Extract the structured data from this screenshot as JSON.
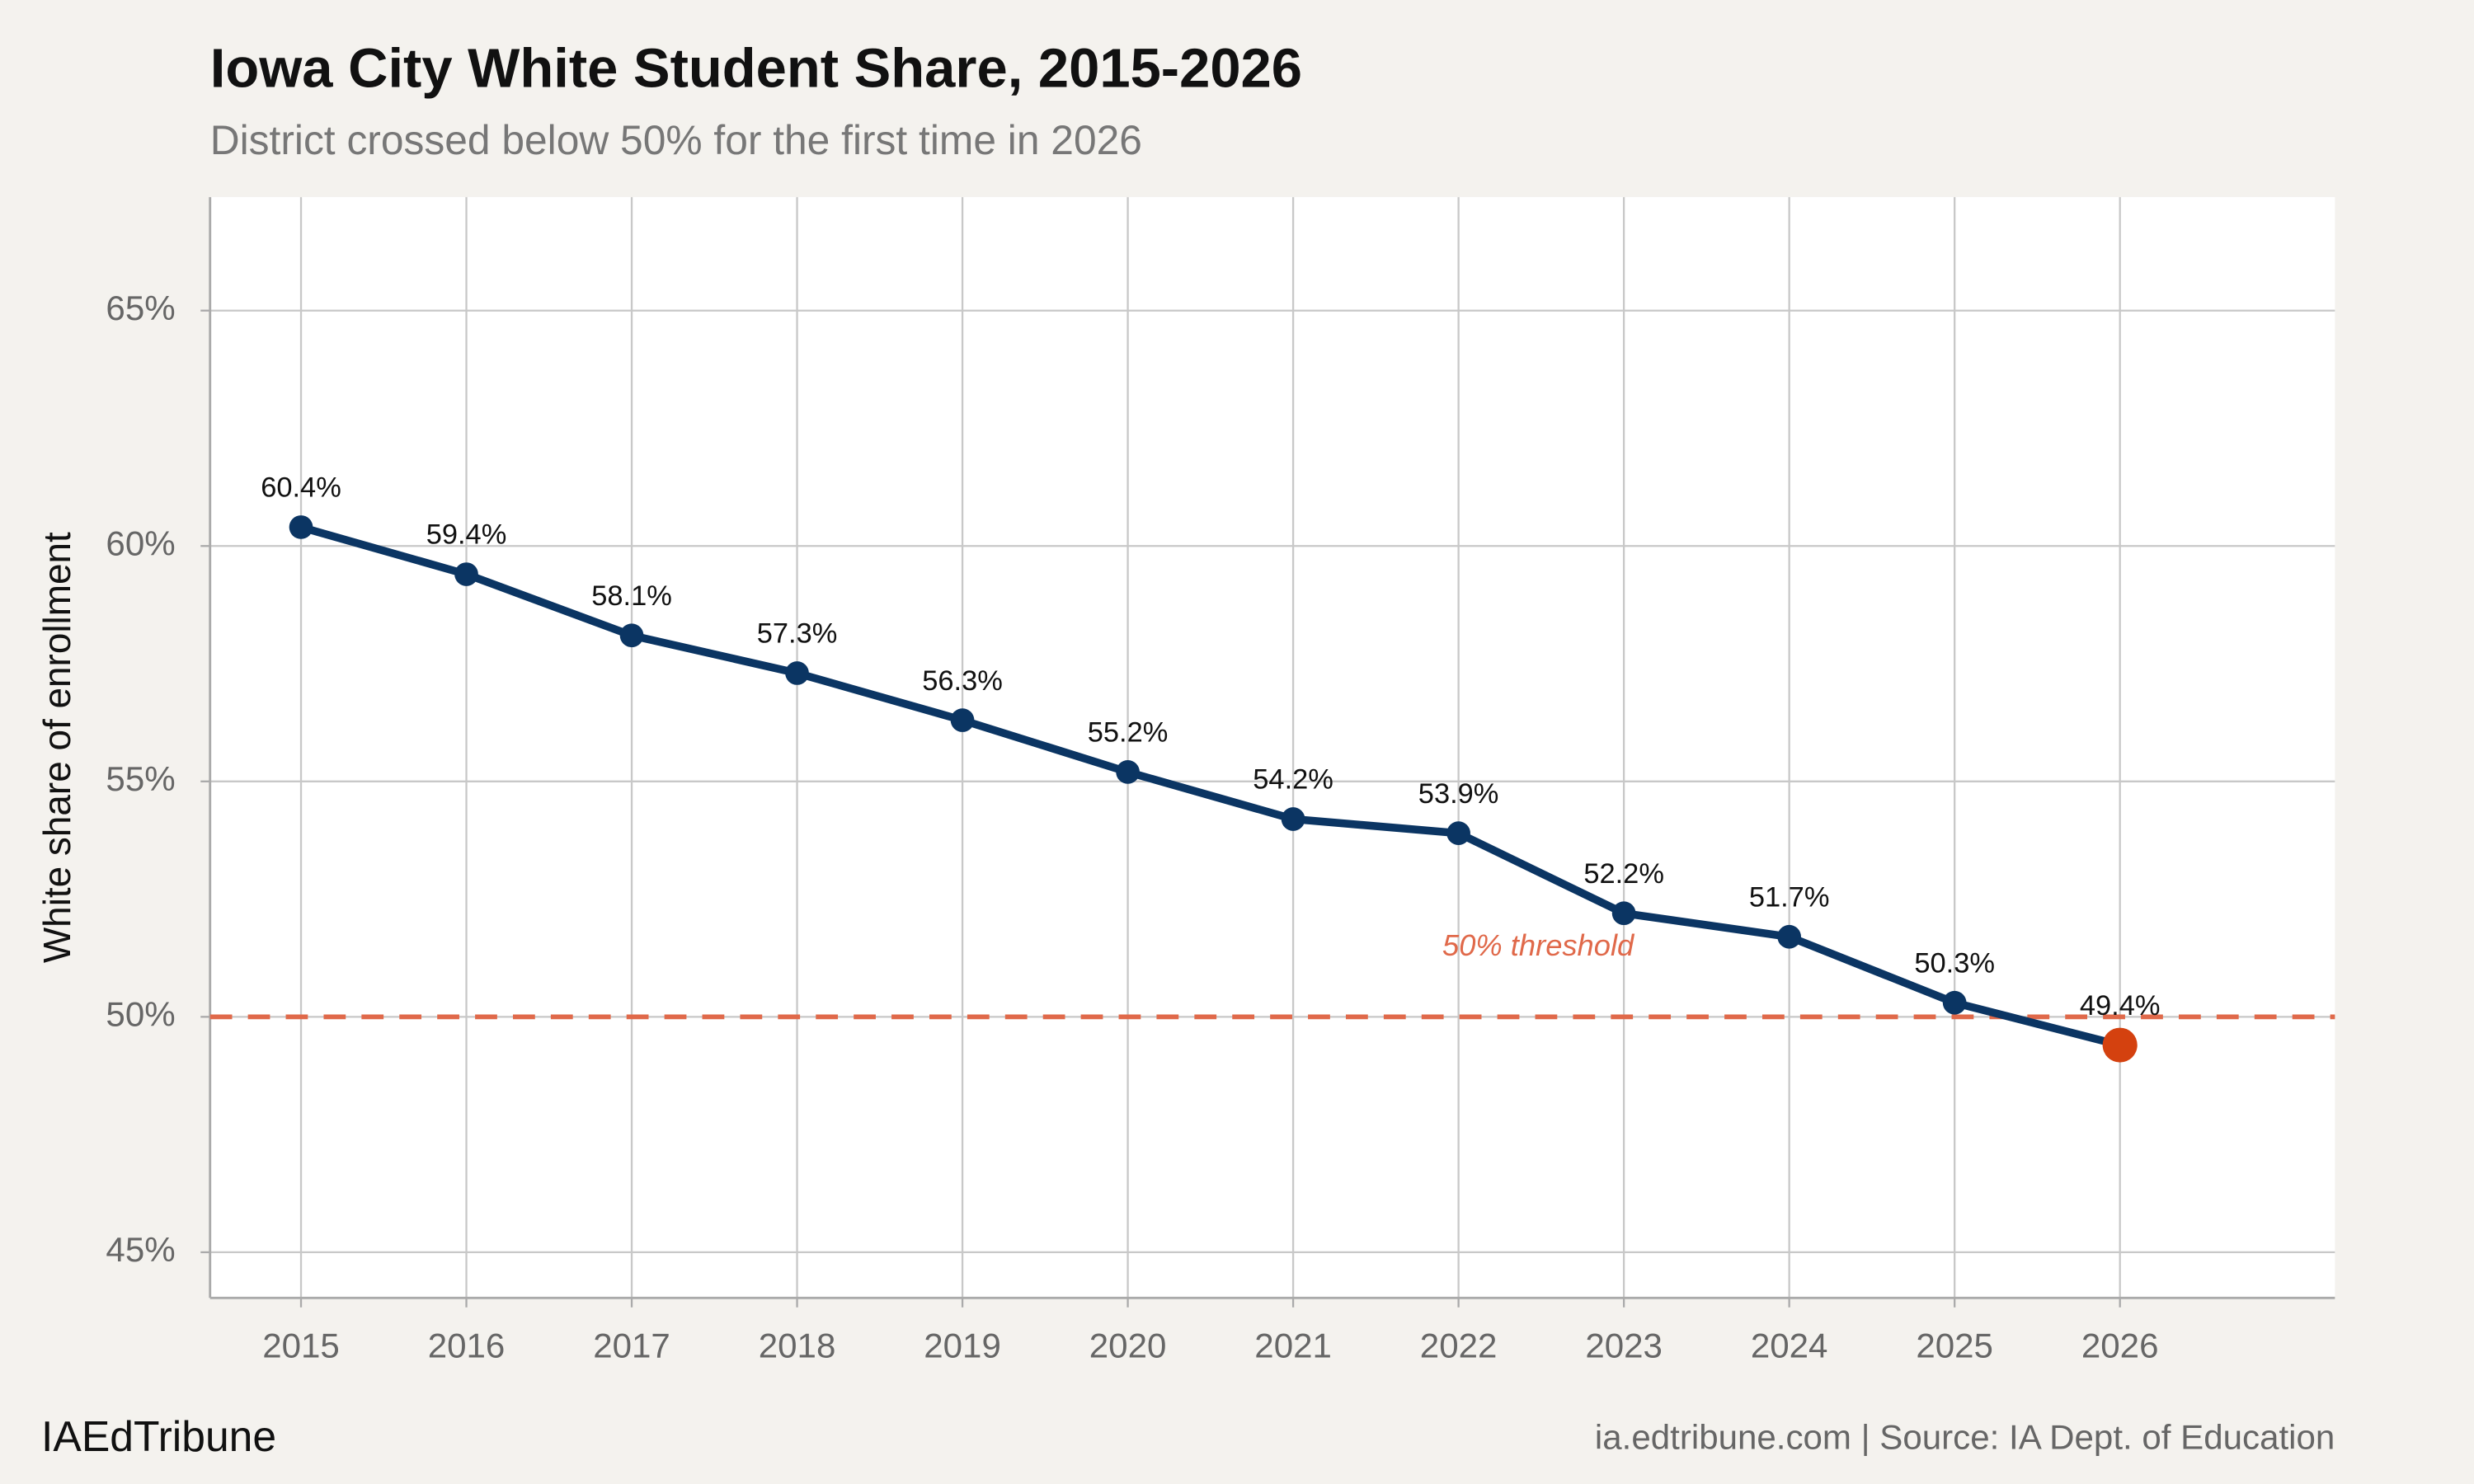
{
  "chart_data": {
    "type": "line",
    "title": "Iowa City White Student Share, 2015-2026",
    "subtitle": "District crossed below 50% for the first time in 2026",
    "y_label": "White share of enrollment",
    "x": [
      2015,
      2016,
      2017,
      2018,
      2019,
      2020,
      2021,
      2022,
      2023,
      2024,
      2025,
      2026
    ],
    "values": [
      60.4,
      59.4,
      58.1,
      57.3,
      56.3,
      55.2,
      54.2,
      53.9,
      52.2,
      51.7,
      50.3,
      49.4
    ],
    "value_labels": [
      "60.4%",
      "59.4%",
      "58.1%",
      "57.3%",
      "56.3%",
      "55.2%",
      "54.2%",
      "53.9%",
      "52.2%",
      "51.7%",
      "50.3%",
      "49.4%"
    ],
    "color": "#0b3563",
    "highlight": {
      "index": 11,
      "color": "#d4410f"
    },
    "xlim": [
      2014.45,
      2027.3
    ],
    "xticks": [
      2015,
      2016,
      2017,
      2018,
      2019,
      2020,
      2021,
      2022,
      2023,
      2024,
      2025,
      2026
    ],
    "ylim": [
      44.03,
      67.41
    ],
    "yticks": [
      {
        "value": 45,
        "label": "45%"
      },
      {
        "value": 50,
        "label": "50%"
      },
      {
        "value": 55,
        "label": "55%"
      },
      {
        "value": 60,
        "label": "60%"
      },
      {
        "value": 65,
        "label": "65%"
      }
    ],
    "grid": true,
    "reference_line": {
      "value": 50,
      "label": "50% threshold",
      "color": "#e0694a"
    },
    "brand": "IAEdTribune",
    "source": "ia.edtribune.com | Source: IA Dept. of Education"
  }
}
